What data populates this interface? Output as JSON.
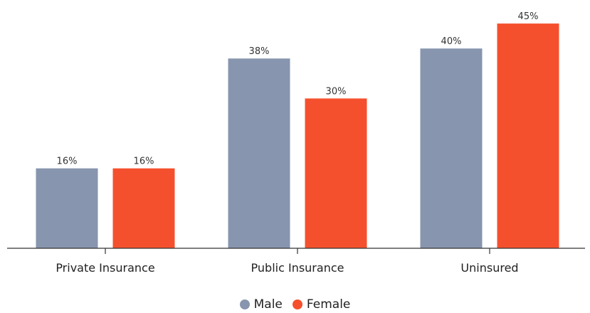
{
  "chart_data": {
    "type": "bar",
    "categories": [
      "Private Insurance",
      "Public Insurance",
      "Uninsured"
    ],
    "series": [
      {
        "name": "Male",
        "values": [
          16,
          38,
          40
        ],
        "labels": [
          "16%",
          "38%",
          "40%"
        ],
        "color": "#8795ae"
      },
      {
        "name": "Female",
        "values": [
          16,
          30,
          45
        ],
        "labels": [
          "16%",
          "30%",
          "45%"
        ],
        "color": "#f5502d"
      }
    ],
    "ylim": [
      0,
      48
    ],
    "legend_position": "bottom-center",
    "grid": false
  }
}
